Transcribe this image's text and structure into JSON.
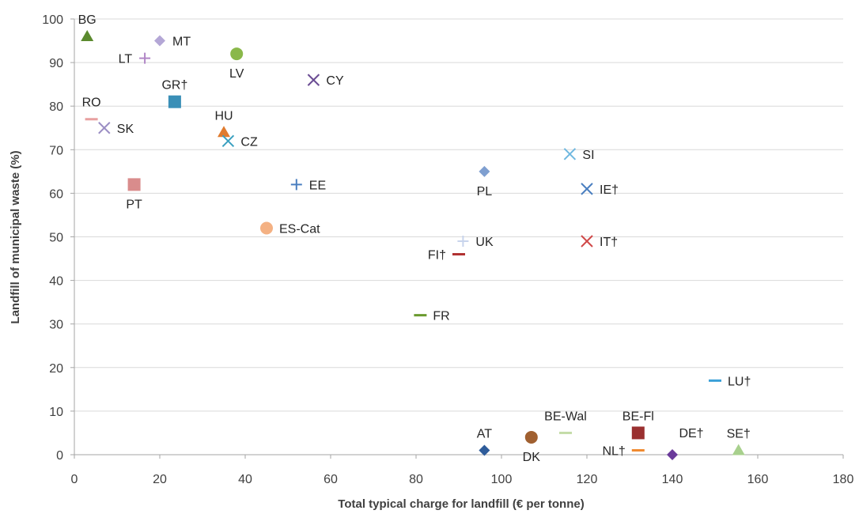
{
  "chart_data": {
    "type": "scatter",
    "title": "",
    "xlabel": "Total typical charge for landfill (€ per tonne)",
    "ylabel": "Landfill of municipal waste (%)",
    "xlim": [
      0,
      180
    ],
    "ylim": [
      0,
      100
    ],
    "xticks": [
      0,
      20,
      40,
      60,
      80,
      100,
      120,
      140,
      160,
      180
    ],
    "yticks": [
      0,
      10,
      20,
      30,
      40,
      50,
      60,
      70,
      80,
      90,
      100
    ],
    "grid": "horizontal",
    "legend": "none",
    "points": [
      {
        "label": "BG",
        "x": 3,
        "y": 96,
        "marker": "triangle",
        "color": "#5b8a2e",
        "label_pos": "above"
      },
      {
        "label": "MT",
        "x": 20,
        "y": 95,
        "marker": "diamond",
        "color": "#b4a7d6",
        "label_pos": "right"
      },
      {
        "label": "LT",
        "x": 16.5,
        "y": 91,
        "marker": "plus",
        "color": "#b186c6",
        "label_pos": "left"
      },
      {
        "label": "LV",
        "x": 38,
        "y": 92,
        "marker": "circle",
        "color": "#8ab84a",
        "label_pos": "below"
      },
      {
        "label": "CY",
        "x": 56,
        "y": 86,
        "marker": "x",
        "color": "#6a4c93",
        "label_pos": "right"
      },
      {
        "label": "GR†",
        "x": 23.5,
        "y": 81,
        "marker": "square",
        "color": "#3a8fb7",
        "label_pos": "above"
      },
      {
        "label": "RO",
        "x": 4,
        "y": 77,
        "marker": "dash",
        "color": "#e8a0a0",
        "label_pos": "above"
      },
      {
        "label": "SK",
        "x": 7,
        "y": 75,
        "marker": "x",
        "color": "#9b8ec4",
        "label_pos": "right"
      },
      {
        "label": "HU",
        "x": 35,
        "y": 74,
        "marker": "triangle",
        "color": "#e07b2e",
        "label_pos": "above"
      },
      {
        "label": "CZ",
        "x": 36,
        "y": 72,
        "marker": "x",
        "color": "#3aa0c0",
        "label_pos": "right"
      },
      {
        "label": "PT",
        "x": 14,
        "y": 62,
        "marker": "square",
        "color": "#d98c8c",
        "label_pos": "below"
      },
      {
        "label": "EE",
        "x": 52,
        "y": 62,
        "marker": "plus",
        "color": "#4a7fc0",
        "label_pos": "right"
      },
      {
        "label": "ES-Cat",
        "x": 45,
        "y": 52,
        "marker": "circle",
        "color": "#f4b183",
        "label_pos": "right"
      },
      {
        "label": "PL",
        "x": 96,
        "y": 65,
        "marker": "diamond",
        "color": "#7f9fd0",
        "label_pos": "below"
      },
      {
        "label": "SI",
        "x": 116,
        "y": 69,
        "marker": "x",
        "color": "#6fb8e0",
        "label_pos": "right"
      },
      {
        "label": "IE†",
        "x": 120,
        "y": 61,
        "marker": "x",
        "color": "#4a7fc0",
        "label_pos": "right"
      },
      {
        "label": "UK",
        "x": 91,
        "y": 49,
        "marker": "plus",
        "color": "#c8d4ec",
        "label_pos": "right"
      },
      {
        "label": "FI†",
        "x": 90,
        "y": 46,
        "marker": "dash",
        "color": "#b03030",
        "label_pos": "left"
      },
      {
        "label": "IT†",
        "x": 120,
        "y": 49,
        "marker": "x",
        "color": "#d04848",
        "label_pos": "right"
      },
      {
        "label": "FR",
        "x": 81,
        "y": 32,
        "marker": "dash",
        "color": "#6a9a2e",
        "label_pos": "right"
      },
      {
        "label": "LU†",
        "x": 150,
        "y": 17,
        "marker": "dash",
        "color": "#3aa0d8",
        "label_pos": "right"
      },
      {
        "label": "AT",
        "x": 96,
        "y": 1,
        "marker": "diamond",
        "color": "#2e5c9a",
        "label_pos": "above"
      },
      {
        "label": "DK",
        "x": 107,
        "y": 4,
        "marker": "circle",
        "color": "#a06030",
        "label_pos": "below"
      },
      {
        "label": "BE-Wal",
        "x": 115,
        "y": 5,
        "marker": "dash",
        "color": "#c4dca8",
        "label_pos": "above"
      },
      {
        "label": "BE-Fl",
        "x": 132,
        "y": 5,
        "marker": "square",
        "color": "#9a3030",
        "label_pos": "above"
      },
      {
        "label": "NL†",
        "x": 132,
        "y": 1,
        "marker": "dash",
        "color": "#f08a30",
        "label_pos": "left"
      },
      {
        "label": "DE†",
        "x": 140,
        "y": 0,
        "marker": "diamond",
        "color": "#6a3a9a",
        "label_pos": "above-right"
      },
      {
        "label": "SE†",
        "x": 155.5,
        "y": 1,
        "marker": "triangle",
        "color": "#a8d08d",
        "label_pos": "above"
      }
    ]
  }
}
